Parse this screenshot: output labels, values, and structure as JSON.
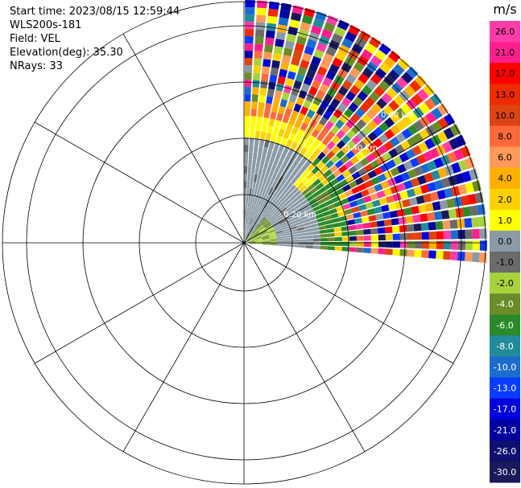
{
  "header": {
    "start_time": "Start time: 2023/08/15 12:59:44",
    "instrument": "WLS200s-181",
    "field": "Field: VEL",
    "elevation": "Elevation(deg): 35.30",
    "nrays": "NRays: 33"
  },
  "chart_data": {
    "type": "heatmap",
    "projection": "polar PPI",
    "field": "VEL",
    "range_ring_labels": [
      "0.20 km",
      "0.40 km",
      "0.60 km"
    ],
    "sector_deg": [
      0,
      95
    ],
    "colorbar": {
      "unit": "m/s",
      "ticks": [
        "26.0",
        "21.0",
        "17.0",
        "13.0",
        "10.0",
        "8.0",
        "6.0",
        "4.0",
        "2.0",
        "1.0",
        "0.0",
        "-1.0",
        "-2.0",
        "-4.0",
        "-6.0",
        "-8.0",
        "-10.0",
        "-13.0",
        "-17.0",
        "-21.0",
        "-26.0",
        "-30.0"
      ],
      "colors": [
        "#ff3ca8",
        "#ff1f8c",
        "#ff0000",
        "#ee2b00",
        "#dd4411",
        "#ff6a3c",
        "#ff9a5a",
        "#ffb000",
        "#ffd000",
        "#ffff00",
        "#8a9aa6",
        "#6b6b6b",
        "#a8d23c",
        "#6a8c28",
        "#2a8a2a",
        "#228b9a",
        "#1c6cd0",
        "#0a3cff",
        "#0000dd",
        "#0000a0",
        "#101070",
        "#1a1a5a"
      ]
    }
  }
}
